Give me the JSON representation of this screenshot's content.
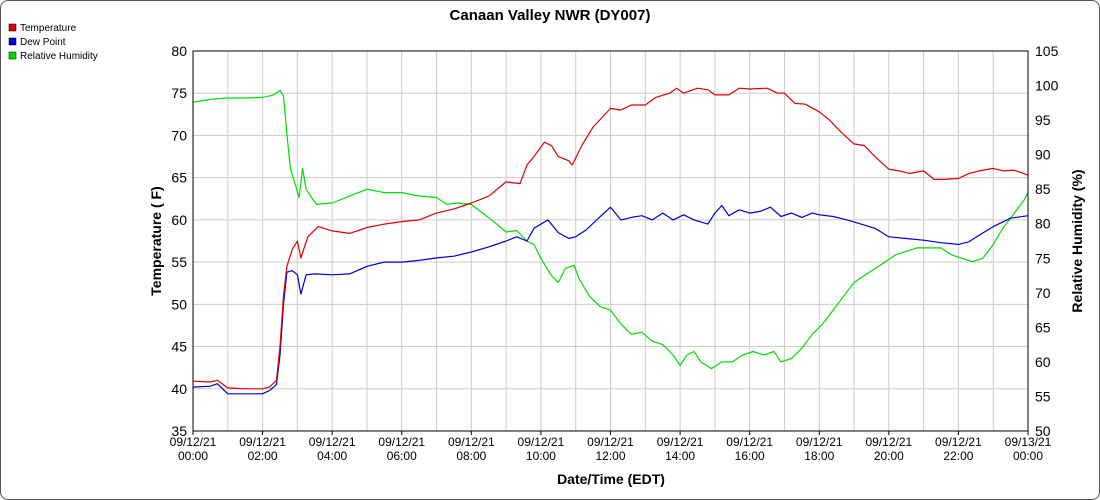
{
  "chart_data": {
    "type": "line",
    "title": "Canaan Valley NWR (DY007)",
    "xlabel": "Date/Time (EDT)",
    "ylabel_left": "Temperature ( F)",
    "ylabel_right": "Relative Humidity (%)",
    "ylim_left": [
      35,
      80
    ],
    "ylim_right": [
      50,
      105
    ],
    "yticks_left": [
      "35",
      "40",
      "45",
      "50",
      "55",
      "60",
      "65",
      "70",
      "75",
      "80"
    ],
    "yticks_right": [
      "50",
      "55",
      "60",
      "65",
      "70",
      "75",
      "80",
      "85",
      "90",
      "95",
      "100",
      "105"
    ],
    "x_ticks": [
      {
        "hour": 0,
        "date": "09/12/21",
        "time": "00:00"
      },
      {
        "hour": 2,
        "date": "09/12/21",
        "time": "02:00"
      },
      {
        "hour": 4,
        "date": "09/12/21",
        "time": "04:00"
      },
      {
        "hour": 6,
        "date": "09/12/21",
        "time": "06:00"
      },
      {
        "hour": 8,
        "date": "09/12/21",
        "time": "08:00"
      },
      {
        "hour": 10,
        "date": "09/12/21",
        "time": "10:00"
      },
      {
        "hour": 12,
        "date": "09/12/21",
        "time": "12:00"
      },
      {
        "hour": 14,
        "date": "09/12/21",
        "time": "14:00"
      },
      {
        "hour": 16,
        "date": "09/12/21",
        "time": "16:00"
      },
      {
        "hour": 18,
        "date": "09/12/21",
        "time": "18:00"
      },
      {
        "hour": 20,
        "date": "09/12/21",
        "time": "20:00"
      },
      {
        "hour": 22,
        "date": "09/12/21",
        "time": "22:00"
      },
      {
        "hour": 24,
        "date": "09/13/21",
        "time": "00:00"
      }
    ],
    "grid": true,
    "legend_position": "top-left",
    "series": [
      {
        "name": "Temperature",
        "axis": "left",
        "color": "#dd0000",
        "points": [
          [
            0,
            40.9
          ],
          [
            0.5,
            40.8
          ],
          [
            0.7,
            41.0
          ],
          [
            1.0,
            40.1
          ],
          [
            1.5,
            40.0
          ],
          [
            2.0,
            40.0
          ],
          [
            2.2,
            40.2
          ],
          [
            2.4,
            41.0
          ],
          [
            2.5,
            45
          ],
          [
            2.6,
            51
          ],
          [
            2.7,
            54.5
          ],
          [
            2.85,
            56.5
          ],
          [
            3.0,
            57.5
          ],
          [
            3.1,
            55.5
          ],
          [
            3.3,
            58.0
          ],
          [
            3.6,
            59.2
          ],
          [
            4.0,
            58.7
          ],
          [
            4.5,
            58.4
          ],
          [
            5.0,
            59.1
          ],
          [
            5.5,
            59.5
          ],
          [
            6.0,
            59.8
          ],
          [
            6.5,
            60.0
          ],
          [
            7.0,
            60.8
          ],
          [
            7.5,
            61.3
          ],
          [
            7.8,
            61.7
          ],
          [
            8.0,
            62.0
          ],
          [
            8.5,
            62.8
          ],
          [
            9.0,
            64.5
          ],
          [
            9.4,
            64.3
          ],
          [
            9.6,
            66.5
          ],
          [
            9.8,
            67.5
          ],
          [
            10.1,
            69.2
          ],
          [
            10.3,
            68.8
          ],
          [
            10.5,
            67.5
          ],
          [
            10.8,
            67.0
          ],
          [
            10.9,
            66.5
          ],
          [
            11.2,
            69.0
          ],
          [
            11.5,
            71.0
          ],
          [
            11.8,
            72.3
          ],
          [
            12.0,
            73.2
          ],
          [
            12.3,
            73.0
          ],
          [
            12.6,
            73.6
          ],
          [
            13.0,
            73.6
          ],
          [
            13.3,
            74.5
          ],
          [
            13.7,
            75.0
          ],
          [
            13.9,
            75.6
          ],
          [
            14.1,
            75.0
          ],
          [
            14.5,
            75.6
          ],
          [
            14.8,
            75.4
          ],
          [
            15.0,
            74.8
          ],
          [
            15.4,
            74.8
          ],
          [
            15.7,
            75.6
          ],
          [
            16.0,
            75.5
          ],
          [
            16.5,
            75.6
          ],
          [
            16.8,
            75.0
          ],
          [
            17.0,
            75.0
          ],
          [
            17.3,
            73.8
          ],
          [
            17.6,
            73.7
          ],
          [
            18.0,
            72.8
          ],
          [
            18.3,
            71.8
          ],
          [
            18.6,
            70.5
          ],
          [
            19.0,
            69.0
          ],
          [
            19.3,
            68.8
          ],
          [
            19.6,
            67.5
          ],
          [
            20.0,
            66.0
          ],
          [
            20.3,
            65.8
          ],
          [
            20.6,
            65.5
          ],
          [
            21.0,
            65.8
          ],
          [
            21.3,
            64.8
          ],
          [
            21.6,
            64.8
          ],
          [
            22.0,
            64.9
          ],
          [
            22.3,
            65.5
          ],
          [
            22.6,
            65.8
          ],
          [
            23.0,
            66.1
          ],
          [
            23.3,
            65.8
          ],
          [
            23.6,
            65.9
          ],
          [
            24.0,
            65.3
          ]
        ]
      },
      {
        "name": "Dew Point",
        "axis": "left",
        "color": "#0000cc",
        "points": [
          [
            0,
            40.2
          ],
          [
            0.5,
            40.3
          ],
          [
            0.7,
            40.6
          ],
          [
            1.0,
            39.4
          ],
          [
            1.5,
            39.4
          ],
          [
            2.0,
            39.4
          ],
          [
            2.2,
            39.8
          ],
          [
            2.4,
            40.5
          ],
          [
            2.5,
            44
          ],
          [
            2.6,
            50
          ],
          [
            2.7,
            53.8
          ],
          [
            2.85,
            54.0
          ],
          [
            3.0,
            53.5
          ],
          [
            3.1,
            51.2
          ],
          [
            3.25,
            53.5
          ],
          [
            3.5,
            53.6
          ],
          [
            4.0,
            53.5
          ],
          [
            4.5,
            53.6
          ],
          [
            5.0,
            54.5
          ],
          [
            5.5,
            55.0
          ],
          [
            6.0,
            55.0
          ],
          [
            6.5,
            55.2
          ],
          [
            7.0,
            55.5
          ],
          [
            7.5,
            55.7
          ],
          [
            8.0,
            56.2
          ],
          [
            8.5,
            56.8
          ],
          [
            9.0,
            57.5
          ],
          [
            9.3,
            58.0
          ],
          [
            9.6,
            57.5
          ],
          [
            9.8,
            59.0
          ],
          [
            10.2,
            60.0
          ],
          [
            10.5,
            58.5
          ],
          [
            10.8,
            57.8
          ],
          [
            11.0,
            58.0
          ],
          [
            11.3,
            58.8
          ],
          [
            11.6,
            60.0
          ],
          [
            12.0,
            61.5
          ],
          [
            12.3,
            60.0
          ],
          [
            12.6,
            60.3
          ],
          [
            12.9,
            60.5
          ],
          [
            13.2,
            60.0
          ],
          [
            13.5,
            60.8
          ],
          [
            13.8,
            60.0
          ],
          [
            14.1,
            60.6
          ],
          [
            14.4,
            60.0
          ],
          [
            14.8,
            59.5
          ],
          [
            15.0,
            60.8
          ],
          [
            15.2,
            61.7
          ],
          [
            15.4,
            60.5
          ],
          [
            15.7,
            61.2
          ],
          [
            16.0,
            60.8
          ],
          [
            16.3,
            61.0
          ],
          [
            16.6,
            61.5
          ],
          [
            16.9,
            60.4
          ],
          [
            17.2,
            60.8
          ],
          [
            17.5,
            60.3
          ],
          [
            17.8,
            60.8
          ],
          [
            18.0,
            60.6
          ],
          [
            18.4,
            60.4
          ],
          [
            18.8,
            60.0
          ],
          [
            19.2,
            59.5
          ],
          [
            19.6,
            59.0
          ],
          [
            20.0,
            58.0
          ],
          [
            20.5,
            57.8
          ],
          [
            21.0,
            57.6
          ],
          [
            21.5,
            57.3
          ],
          [
            22.0,
            57.1
          ],
          [
            22.3,
            57.4
          ],
          [
            22.6,
            58.2
          ],
          [
            23.0,
            59.2
          ],
          [
            23.5,
            60.2
          ],
          [
            24.0,
            60.5
          ]
        ]
      },
      {
        "name": "Relative Humidity",
        "axis": "right",
        "color": "#00dd00",
        "points": [
          [
            0,
            97.6
          ],
          [
            0.5,
            98.0
          ],
          [
            1.0,
            98.2
          ],
          [
            1.5,
            98.2
          ],
          [
            2.0,
            98.3
          ],
          [
            2.3,
            98.6
          ],
          [
            2.5,
            99.3
          ],
          [
            2.6,
            98.5
          ],
          [
            2.7,
            93.0
          ],
          [
            2.8,
            88.0
          ],
          [
            2.95,
            85.5
          ],
          [
            3.05,
            83.8
          ],
          [
            3.15,
            88.0
          ],
          [
            3.25,
            85.0
          ],
          [
            3.45,
            83.5
          ],
          [
            3.55,
            82.8
          ],
          [
            4.0,
            83.0
          ],
          [
            4.5,
            84.0
          ],
          [
            5.0,
            85.0
          ],
          [
            5.5,
            84.5
          ],
          [
            6.0,
            84.5
          ],
          [
            6.5,
            84.0
          ],
          [
            7.0,
            83.8
          ],
          [
            7.3,
            82.8
          ],
          [
            7.6,
            83.0
          ],
          [
            8.0,
            82.8
          ],
          [
            8.2,
            82.0
          ],
          [
            8.6,
            80.5
          ],
          [
            9.0,
            78.8
          ],
          [
            9.3,
            79.0
          ],
          [
            9.6,
            77.5
          ],
          [
            9.8,
            77.0
          ],
          [
            10.0,
            75.0
          ],
          [
            10.3,
            72.5
          ],
          [
            10.5,
            71.5
          ],
          [
            10.7,
            73.5
          ],
          [
            10.95,
            74.0
          ],
          [
            11.1,
            72.0
          ],
          [
            11.4,
            69.5
          ],
          [
            11.7,
            68.0
          ],
          [
            12.0,
            67.5
          ],
          [
            12.3,
            65.5
          ],
          [
            12.6,
            64.0
          ],
          [
            12.9,
            64.3
          ],
          [
            13.2,
            63.0
          ],
          [
            13.5,
            62.5
          ],
          [
            13.8,
            61.0
          ],
          [
            14.0,
            59.5
          ],
          [
            14.2,
            61.0
          ],
          [
            14.4,
            61.5
          ],
          [
            14.6,
            60.0
          ],
          [
            14.9,
            59.0
          ],
          [
            15.2,
            60.0
          ],
          [
            15.5,
            60.0
          ],
          [
            15.8,
            61.0
          ],
          [
            16.1,
            61.5
          ],
          [
            16.4,
            61.0
          ],
          [
            16.7,
            61.5
          ],
          [
            16.9,
            60.0
          ],
          [
            17.2,
            60.5
          ],
          [
            17.5,
            62.0
          ],
          [
            17.8,
            64.0
          ],
          [
            18.1,
            65.5
          ],
          [
            18.4,
            67.5
          ],
          [
            18.7,
            69.5
          ],
          [
            19.0,
            71.5
          ],
          [
            19.3,
            72.5
          ],
          [
            19.6,
            73.5
          ],
          [
            19.9,
            74.5
          ],
          [
            20.2,
            75.5
          ],
          [
            20.5,
            76.0
          ],
          [
            20.8,
            76.5
          ],
          [
            21.1,
            76.5
          ],
          [
            21.5,
            76.5
          ],
          [
            21.8,
            75.5
          ],
          [
            22.1,
            75.0
          ],
          [
            22.4,
            74.5
          ],
          [
            22.7,
            75.0
          ],
          [
            23.0,
            77.0
          ],
          [
            23.3,
            79.5
          ],
          [
            23.6,
            81.5
          ],
          [
            23.9,
            83.5
          ],
          [
            24.0,
            84.5
          ]
        ]
      }
    ]
  }
}
